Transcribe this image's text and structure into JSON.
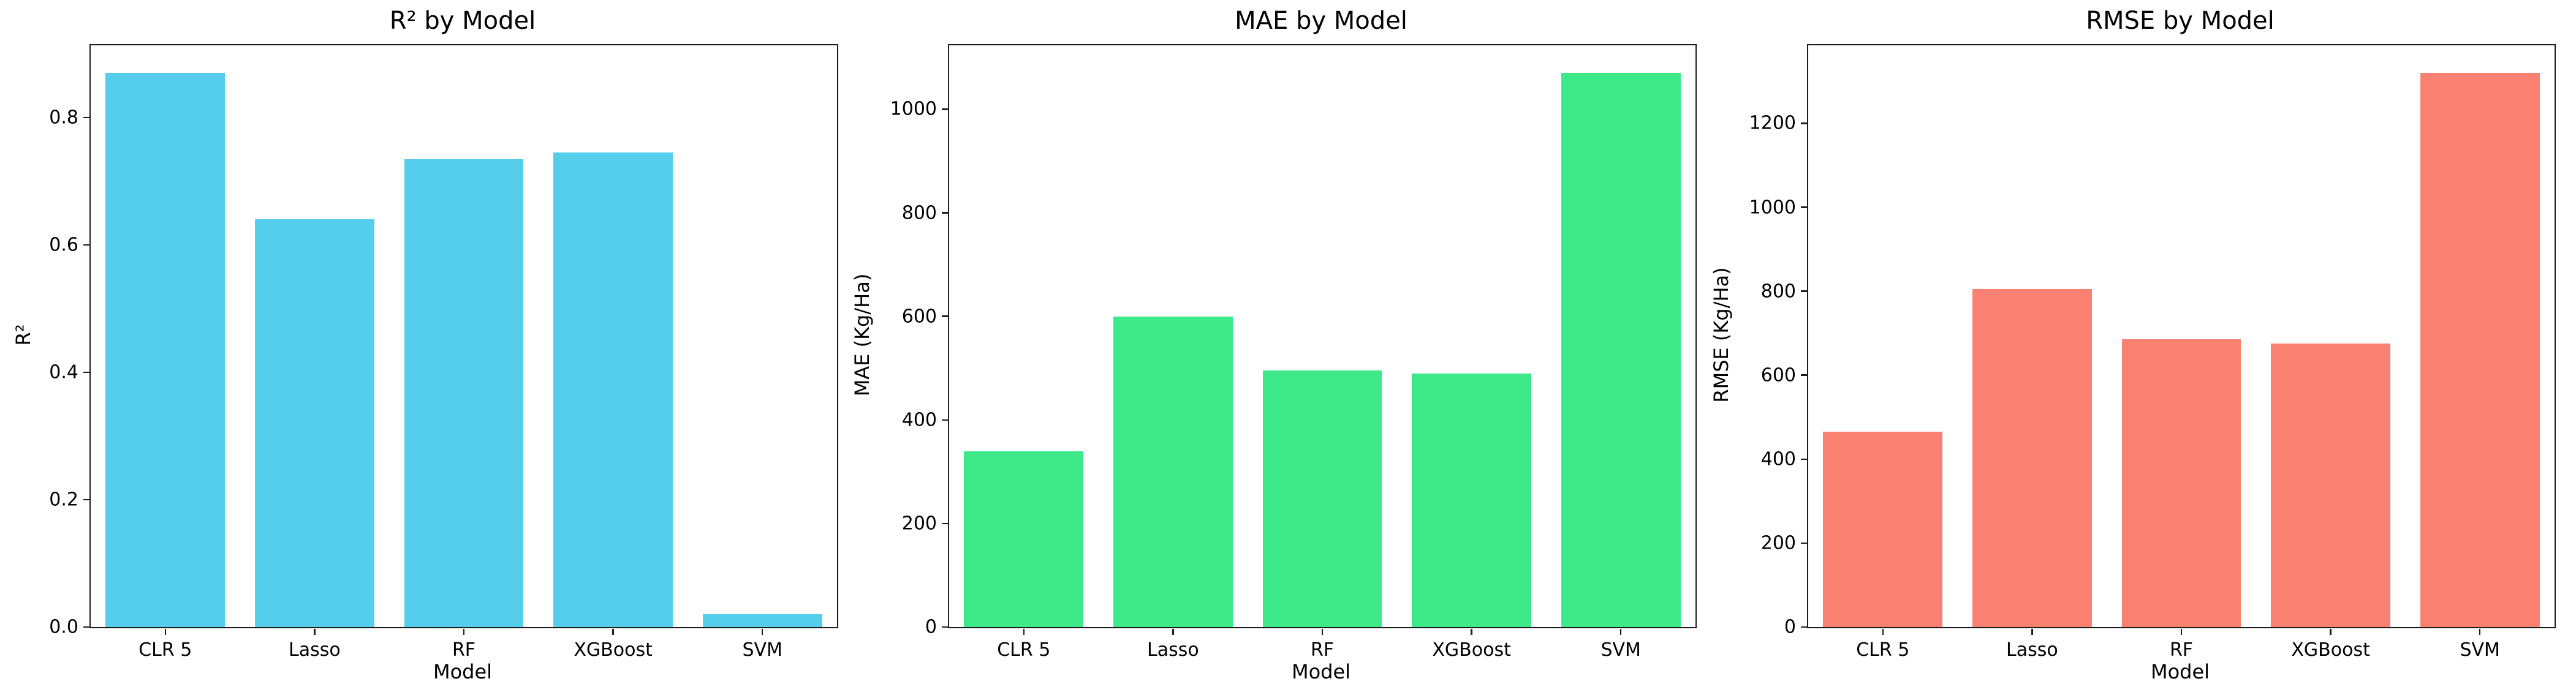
{
  "figure": {
    "background_color": "#ffffff",
    "text_color": "#000000",
    "spine_color": "#1c1c1c"
  },
  "chart_data": [
    {
      "type": "bar",
      "title": "R² by Model",
      "xlabel": "Model",
      "ylabel": "R²",
      "categories": [
        "CLR 5",
        "Lasso",
        "RF",
        "XGBoost",
        "SVM"
      ],
      "values": [
        0.87,
        0.64,
        0.735,
        0.745,
        0.02
      ],
      "bar_color": "#55CEEB",
      "ylim": [
        0,
        0.9135
      ],
      "ytick_values": [
        0.0,
        0.2,
        0.4,
        0.6,
        0.8
      ],
      "ytick_labels": [
        "0.0",
        "0.2",
        "0.4",
        "0.6",
        "0.8"
      ],
      "grid": false,
      "legend": "none",
      "bar_width_fraction": 0.8
    },
    {
      "type": "bar",
      "title": "MAE by Model",
      "xlabel": "Model",
      "ylabel": "MAE (Kg/Ha)",
      "categories": [
        "CLR 5",
        "Lasso",
        "RF",
        "XGBoost",
        "SVM"
      ],
      "values": [
        340,
        600,
        495,
        490,
        1070
      ],
      "bar_color": "#3EE98A",
      "ylim": [
        0,
        1123.5
      ],
      "ytick_values": [
        0,
        200,
        400,
        600,
        800,
        1000
      ],
      "ytick_labels": [
        "0",
        "200",
        "400",
        "600",
        "800",
        "1000"
      ],
      "grid": false,
      "legend": "none",
      "bar_width_fraction": 0.8
    },
    {
      "type": "bar",
      "title": "RMSE by Model",
      "xlabel": "Model",
      "ylabel": "RMSE (Kg/Ha)",
      "categories": [
        "CLR 5",
        "Lasso",
        "RF",
        "XGBoost",
        "SVM"
      ],
      "values": [
        465,
        805,
        685,
        675,
        1320
      ],
      "bar_color": "#FA8072",
      "ylim": [
        0,
        1386
      ],
      "ytick_values": [
        0,
        200,
        400,
        600,
        800,
        1000,
        1200
      ],
      "ytick_labels": [
        "0",
        "200",
        "400",
        "600",
        "800",
        "1000",
        "1200"
      ],
      "grid": false,
      "legend": "none",
      "bar_width_fraction": 0.8
    }
  ]
}
